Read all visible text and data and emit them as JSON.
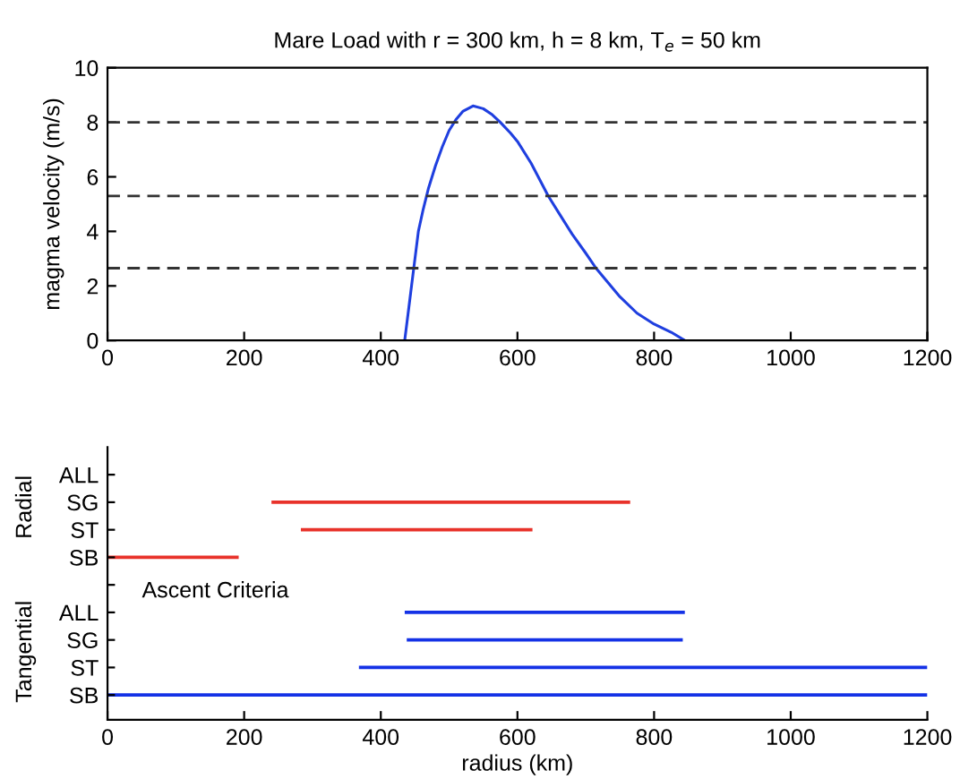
{
  "chart_data": [
    {
      "type": "line",
      "title": "Mare Load with r = 300 km, h = 8 km, T$_{e}$ = 50 km",
      "ylabel": "magma velocity (m/s)",
      "series": [
        {
          "color": "#1f3fdf",
          "x": [
            435,
            440,
            445,
            450,
            455,
            462,
            470,
            480,
            490,
            500,
            510,
            520,
            535,
            550,
            562,
            575,
            590,
            600,
            620,
            645,
            660,
            680,
            700,
            715,
            730,
            750,
            775,
            800,
            825,
            845
          ],
          "values": [
            0,
            1.0,
            2.0,
            3.0,
            4.0,
            4.8,
            5.6,
            6.4,
            7.1,
            7.7,
            8.1,
            8.4,
            8.6,
            8.5,
            8.3,
            8.0,
            7.6,
            7.3,
            6.5,
            5.3,
            4.7,
            3.9,
            3.2,
            2.65,
            2.2,
            1.6,
            1.0,
            0.6,
            0.3,
            0
          ]
        }
      ],
      "xlim": [
        0,
        1200
      ],
      "xticks": [
        0,
        200,
        400,
        600,
        800,
        1000,
        1200
      ],
      "ylim": [
        0,
        10
      ],
      "yticks": [
        0,
        2,
        4,
        6,
        8,
        10
      ],
      "ref_lines": [
        {
          "axis": "y",
          "value": 8,
          "color": "#333333",
          "line_style": "dashed"
        },
        {
          "axis": "y",
          "value": 5.3,
          "color": "#333333",
          "line_style": "dashed"
        },
        {
          "axis": "y",
          "value": 2.65,
          "color": "#333333",
          "line_style": "dashed"
        }
      ],
      "grid": false,
      "legend": false
    },
    {
      "type": "bar",
      "orientation": "horizontal",
      "xlabel": "radius (km)",
      "categories": [
        "ALL",
        "SG",
        "ST",
        "SB",
        null,
        "ALL",
        "SG",
        "ST",
        "SB"
      ],
      "base": [
        null,
        240,
        283,
        0,
        null,
        435,
        438,
        368,
        0
      ],
      "values": [
        null,
        525,
        339,
        192,
        null,
        410,
        404,
        832,
        1200
      ],
      "colors": [
        "#e8322a",
        "#e8322a",
        "#e8322a",
        "#e8322a",
        null,
        "#1432e6",
        "#1432e6",
        "#1432e6",
        "#1432e6"
      ],
      "xlim": [
        0,
        1200
      ],
      "xticks": [
        0,
        200,
        400,
        600,
        800,
        1000,
        1200
      ],
      "annotations": [
        "Radial",
        "Tangential",
        "Ascent Criteria"
      ],
      "grid": false,
      "legend": false
    }
  ]
}
